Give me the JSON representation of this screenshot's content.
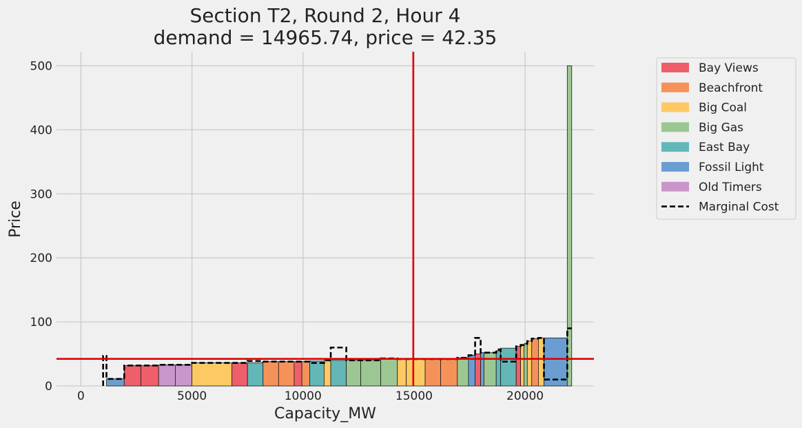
{
  "chart_data": {
    "type": "bar",
    "title": "Section T2, Round 2, Hour 4",
    "subtitle": "demand = 14965.74, price = 42.35",
    "xlabel": "Capacity_MW",
    "ylabel": "Price",
    "xlim": [
      -1100,
      23100
    ],
    "ylim": [
      0,
      522
    ],
    "xticks": [
      0,
      5000,
      10000,
      15000,
      20000
    ],
    "yticks": [
      0,
      100,
      200,
      300,
      400,
      500
    ],
    "grid": true,
    "legend_position": "upper-right-outside",
    "demand": 14965.74,
    "price": 42.35,
    "colors": {
      "Bay Views": "#ee5e6b",
      "Beachfront": "#f5925a",
      "Big Coal": "#fdc964",
      "Big Gas": "#9cc792",
      "East Bay": "#63b7b7",
      "Fossil Light": "#6a9ed2",
      "Old Timers": "#c996c9",
      "lines": "#e00000",
      "marginal_cost": "#000000"
    },
    "legend": [
      "Bay Views",
      "Beachfront",
      "Big Coal",
      "Big Gas",
      "East Bay",
      "Fossil Light",
      "Old Timers",
      "Marginal Cost"
    ],
    "bars": [
      {
        "x0": 1150,
        "x1": 1950,
        "price": 11,
        "portfolio": "Fossil Light",
        "mc": 11
      },
      {
        "x0": 1950,
        "x1": 2700,
        "price": 32,
        "portfolio": "Bay Views",
        "mc": 32
      },
      {
        "x0": 2700,
        "x1": 3500,
        "price": 32,
        "portfolio": "Bay Views",
        "mc": 32
      },
      {
        "x0": 3500,
        "x1": 4250,
        "price": 33,
        "portfolio": "Old Timers",
        "mc": 33
      },
      {
        "x0": 4250,
        "x1": 5000,
        "price": 33,
        "portfolio": "Old Timers",
        "mc": 33
      },
      {
        "x0": 5000,
        "x1": 6800,
        "price": 36,
        "portfolio": "Big Coal",
        "mc": 36
      },
      {
        "x0": 6800,
        "x1": 7500,
        "price": 36,
        "portfolio": "Bay Views",
        "mc": 36
      },
      {
        "x0": 7500,
        "x1": 8200,
        "price": 36,
        "portfolio": "East Bay",
        "mc": 39
      },
      {
        "x0": 8200,
        "x1": 8900,
        "price": 38,
        "portfolio": "Beachfront",
        "mc": 38
      },
      {
        "x0": 8900,
        "x1": 9600,
        "price": 38,
        "portfolio": "Beachfront",
        "mc": 38
      },
      {
        "x0": 9600,
        "x1": 9950,
        "price": 38,
        "portfolio": "Bay Views",
        "mc": 38
      },
      {
        "x0": 9950,
        "x1": 10300,
        "price": 38,
        "portfolio": "Beachfront",
        "mc": 38
      },
      {
        "x0": 10300,
        "x1": 10950,
        "price": 39,
        "portfolio": "East Bay",
        "mc": 36
      },
      {
        "x0": 10950,
        "x1": 11250,
        "price": 40,
        "portfolio": "Big Coal",
        "mc": 40
      },
      {
        "x0": 11250,
        "x1": 11950,
        "price": 40,
        "portfolio": "East Bay",
        "mc": 60
      },
      {
        "x0": 11950,
        "x1": 12600,
        "price": 40,
        "portfolio": "Big Gas",
        "mc": 40
      },
      {
        "x0": 12600,
        "x1": 13500,
        "price": 40,
        "portfolio": "Big Gas",
        "mc": 40
      },
      {
        "x0": 13500,
        "x1": 14250,
        "price": 42,
        "portfolio": "Big Gas",
        "mc": 43
      },
      {
        "x0": 14250,
        "x1": 14650,
        "price": 42,
        "portfolio": "Big Coal",
        "mc": 42
      },
      {
        "x0": 14650,
        "x1": 15500,
        "price": 42,
        "portfolio": "Big Coal",
        "mc": 42
      },
      {
        "x0": 15500,
        "x1": 16200,
        "price": 42,
        "portfolio": "Beachfront",
        "mc": 42
      },
      {
        "x0": 16200,
        "x1": 16950,
        "price": 42,
        "portfolio": "Beachfront",
        "mc": 42
      },
      {
        "x0": 16950,
        "x1": 17450,
        "price": 44,
        "portfolio": "Big Gas",
        "mc": 44
      },
      {
        "x0": 17450,
        "x1": 17750,
        "price": 48,
        "portfolio": "Fossil Light",
        "mc": 48
      },
      {
        "x0": 17750,
        "x1": 18000,
        "price": 50,
        "portfolio": "Bay Views",
        "mc": 75
      },
      {
        "x0": 18000,
        "x1": 18150,
        "price": 52,
        "portfolio": "Fossil Light",
        "mc": 52
      },
      {
        "x0": 18150,
        "x1": 18700,
        "price": 52,
        "portfolio": "Big Gas",
        "mc": 52
      },
      {
        "x0": 18700,
        "x1": 18900,
        "price": 55,
        "portfolio": "East Bay",
        "mc": 57
      },
      {
        "x0": 18900,
        "x1": 19600,
        "price": 59,
        "portfolio": "East Bay",
        "mc": 38
      },
      {
        "x0": 19600,
        "x1": 19800,
        "price": 62,
        "portfolio": "Bay Views",
        "mc": 62
      },
      {
        "x0": 19800,
        "x1": 19950,
        "price": 64,
        "portfolio": "Big Coal",
        "mc": 64
      },
      {
        "x0": 19950,
        "x1": 20100,
        "price": 66,
        "portfolio": "Big Gas",
        "mc": 66
      },
      {
        "x0": 20100,
        "x1": 20300,
        "price": 70,
        "portfolio": "Big Coal",
        "mc": 70
      },
      {
        "x0": 20300,
        "x1": 20600,
        "price": 74,
        "portfolio": "Beachfront",
        "mc": 74
      },
      {
        "x0": 20600,
        "x1": 20850,
        "price": 75,
        "portfolio": "Big Coal",
        "mc": 75
      },
      {
        "x0": 20850,
        "x1": 21900,
        "price": 75,
        "portfolio": "Fossil Light",
        "mc": 10
      },
      {
        "x0": 21900,
        "x1": 22100,
        "price": 500,
        "portfolio": "Big Gas",
        "mc": 90
      }
    ],
    "mc_start": {
      "x": 1000,
      "y": 0,
      "peak": 47
    }
  }
}
